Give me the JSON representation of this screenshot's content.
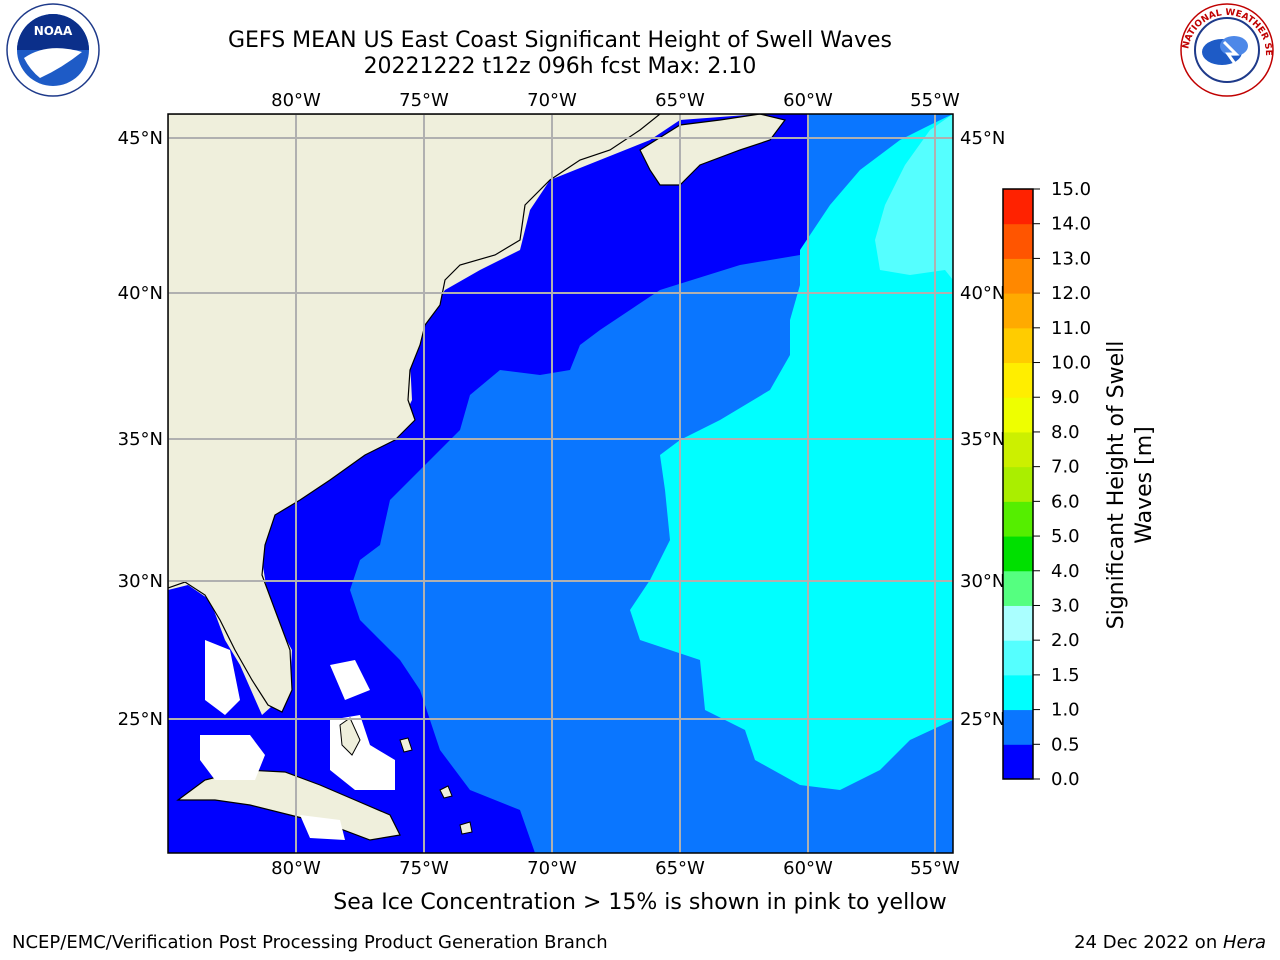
{
  "header": {
    "title_line1": "GEFS MEAN US East Coast Significant Height of Swell Waves",
    "title_line2": "20221222 t12z 096h fcst   Max: 2.10"
  },
  "logos": {
    "left": "NOAA",
    "right": "NATIONAL WEATHER SERVICE"
  },
  "map": {
    "lon_labels": [
      "80°W",
      "75°W",
      "70°W",
      "65°W",
      "60°W",
      "55°W"
    ],
    "lat_labels": [
      "45°N",
      "40°N",
      "35°N",
      "30°N",
      "25°N"
    ],
    "colors": {
      "land": "#efefdc",
      "band_0_0_5": "#0000ff",
      "band_0_5_1_0": "#0a76ff",
      "band_1_0_1_5": "#00ffff",
      "band_1_5_2_0": "#55ffff",
      "missing": "#ffffff",
      "grid": "#b0b0b0"
    }
  },
  "colorbar": {
    "label_line1": "Significant Height of Swell",
    "label_line2": "Waves [m]",
    "ticks": [
      "0.0",
      "0.5",
      "1.0",
      "1.5",
      "2.0",
      "3.0",
      "4.0",
      "5.0",
      "6.0",
      "7.0",
      "8.0",
      "9.0",
      "10.0",
      "11.0",
      "12.0",
      "13.0",
      "14.0",
      "15.0"
    ],
    "colors": [
      "#0000ff",
      "#0a76ff",
      "#00ffff",
      "#55ffff",
      "#aaffff",
      "#55ff80",
      "#00e000",
      "#55ee00",
      "#aaee00",
      "#ccf000",
      "#eeff00",
      "#ffee00",
      "#ffcc00",
      "#ffaa00",
      "#ff8800",
      "#ff5500",
      "#ff2200"
    ]
  },
  "footer": {
    "note": "Sea Ice Concentration > 15% is shown in pink to yellow",
    "credit_left": "NCEP/EMC/Verification Post Processing Product Generation Branch",
    "credit_right_date": "24 Dec 2022 on ",
    "credit_right_host": "Hera"
  }
}
